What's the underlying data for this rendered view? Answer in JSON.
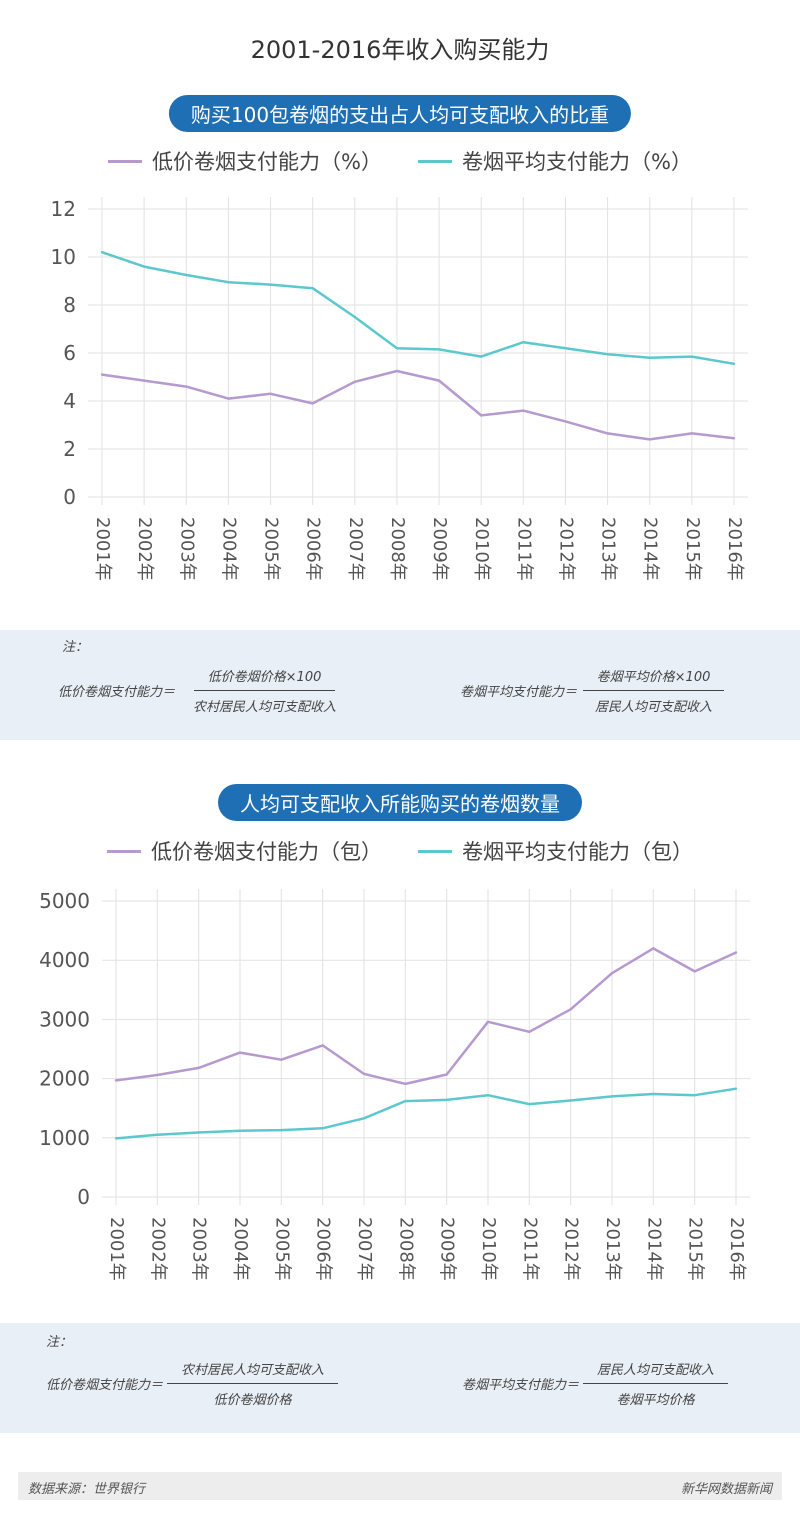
{
  "title": "2001-2016年收入购买能力",
  "colors": {
    "low": "#b699cf",
    "avg": "#5cc8ce",
    "pill": "#1f6fb5"
  },
  "charts": [
    {
      "subtitle": "购买100包卷烟的支出占人均可支配收入的比重",
      "legend": [
        "低价卷烟支付能力（%）",
        "卷烟平均支付能力（%）"
      ],
      "note": {
        "label": "注：",
        "formula_left": {
          "lhs": "低价卷烟支付能力＝",
          "num": "低价卷烟价格×100",
          "den": "农村居民人均可支配收入"
        },
        "formula_right": {
          "lhs": "卷烟平均支付能力＝",
          "num": "卷烟平均价格×100",
          "den": "居民人均可支配收入"
        }
      }
    },
    {
      "subtitle": "人均可支配收入所能购买的卷烟数量",
      "legend": [
        "低价卷烟支付能力（包）",
        "卷烟平均支付能力（包）"
      ],
      "note": {
        "label": "注：",
        "formula_left": {
          "lhs": "低价卷烟支付能力＝",
          "num": "农村居民人均可支配收入",
          "den": "低价卷烟价格"
        },
        "formula_right": {
          "lhs": "卷烟平均支付能力＝",
          "num": "居民人均可支配收入",
          "den": "卷烟平均价格"
        }
      }
    }
  ],
  "chart_data": [
    {
      "type": "line",
      "title": "购买100包卷烟的支出占人均可支配收入的比重",
      "categories": [
        "2001年",
        "2002年",
        "2003年",
        "2004年",
        "2005年",
        "2006年",
        "2007年",
        "2008年",
        "2009年",
        "2010年",
        "2011年",
        "2012年",
        "2013年",
        "2014年",
        "2015年",
        "2016年"
      ],
      "series": [
        {
          "name": "低价卷烟支付能力（%）",
          "values": [
            5.1,
            4.85,
            4.6,
            4.1,
            4.3,
            3.9,
            4.8,
            5.25,
            4.85,
            3.4,
            3.6,
            3.15,
            2.65,
            2.4,
            2.65,
            2.45
          ]
        },
        {
          "name": "卷烟平均支付能力（%）",
          "values": [
            10.2,
            9.6,
            9.25,
            8.95,
            8.85,
            8.7,
            7.5,
            6.2,
            6.15,
            5.85,
            6.45,
            6.2,
            5.95,
            5.8,
            5.85,
            5.55
          ]
        }
      ],
      "yticks": [
        0,
        2,
        4,
        6,
        8,
        10,
        12
      ],
      "ylim": [
        0,
        12
      ]
    },
    {
      "type": "line",
      "title": "人均可支配收入所能购买的卷烟数量",
      "categories": [
        "2001年",
        "2002年",
        "2003年",
        "2004年",
        "2005年",
        "2006年",
        "2007年",
        "2008年",
        "2009年",
        "2010年",
        "2011年",
        "2012年",
        "2013年",
        "2014年",
        "2015年",
        "2016年"
      ],
      "series": [
        {
          "name": "低价卷烟支付能力（包）",
          "values": [
            1970,
            2060,
            2180,
            2440,
            2320,
            2560,
            2080,
            1910,
            2070,
            2960,
            2790,
            3170,
            3780,
            4200,
            3810,
            4130
          ]
        },
        {
          "name": "卷烟平均支付能力（包）",
          "values": [
            990,
            1050,
            1090,
            1120,
            1130,
            1160,
            1330,
            1620,
            1640,
            1720,
            1570,
            1630,
            1700,
            1740,
            1720,
            1830
          ]
        }
      ],
      "yticks": [
        0,
        1000,
        2000,
        3000,
        4000,
        5000
      ],
      "ylim": [
        0,
        5000
      ]
    }
  ],
  "footer": {
    "source": "数据来源：世界银行",
    "brand": "新华网数据新闻"
  }
}
